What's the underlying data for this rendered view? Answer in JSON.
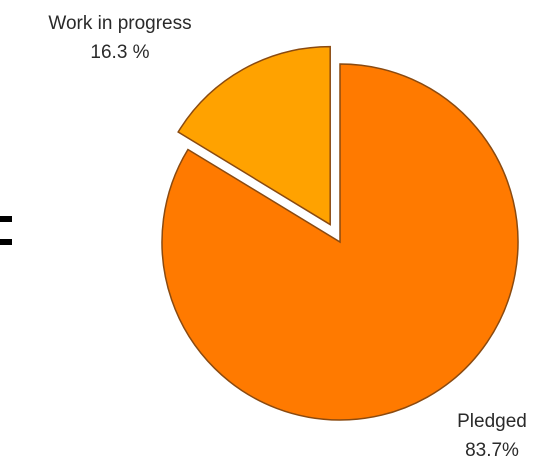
{
  "chart_data": {
    "type": "pie",
    "slices": [
      {
        "label": "Pledged",
        "value": 83.7,
        "value_label": "83.7%",
        "color": "#FF7A00",
        "exploded": false
      },
      {
        "label": "Work in progress",
        "value": 16.3,
        "value_label": "16.3 %",
        "color": "#FFA200",
        "exploded": true
      }
    ],
    "outline_color": "#8a4a10",
    "start_angle": "12 o'clock",
    "direction": "clockwise",
    "legend": "none"
  }
}
